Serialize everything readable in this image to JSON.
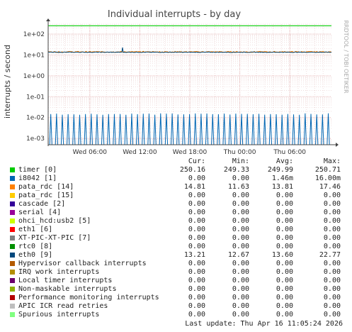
{
  "chart_data": {
    "type": "line",
    "title": "Individual interrupts - by day",
    "ylabel": "interrupts / second",
    "vertical_text": "RRDTOOL / TOBI OETIKER",
    "y_scale": "log",
    "ylim": [
      0.0005,
      300
    ],
    "y_ticks": [
      "1e+02",
      "1e+01",
      "1e+00",
      "1e-01",
      "1e-02",
      "1e-03"
    ],
    "y_tick_values": [
      100,
      10,
      1,
      0.1,
      0.01,
      0.001
    ],
    "xlim": [
      "Wed 01:00",
      "Thu 11:00"
    ],
    "x_ticks": [
      "Wed 06:00",
      "Wed 12:00",
      "Wed 18:00",
      "Thu 00:00",
      "Thu 06:00"
    ],
    "x_tick_hours": [
      5,
      11,
      17,
      23,
      29
    ],
    "x_range_hours": 34,
    "grid": true,
    "legend_placement": "bottom",
    "columns": [
      "Cur:",
      "Min:",
      "Avg:",
      "Max:"
    ],
    "series": [
      {
        "name": "timer [0]",
        "color": "#00cc00",
        "cur": "250.16",
        "min": "249.33",
        "avg": "249.99",
        "max": "250.71",
        "line": {
          "base": 250,
          "jitter": 0.3
        }
      },
      {
        "name": "i8042 [1]",
        "color": "#0066b3",
        "cur": "0.00",
        "min": "0.00",
        "avg": "1.46m",
        "max": "16.00m",
        "line": {
          "spikes": true,
          "peak": 0.016,
          "count": 49
        }
      },
      {
        "name": "pata_rdc [14]",
        "color": "#ff8000",
        "cur": "14.81",
        "min": "11.63",
        "avg": "13.81",
        "max": "17.46",
        "line": {
          "base": 14,
          "jitter": 1.5
        }
      },
      {
        "name": "pata_rdc [15]",
        "color": "#ffcc00",
        "cur": "0.00",
        "min": "0.00",
        "avg": "0.00",
        "max": "0.00"
      },
      {
        "name": "cascade [2]",
        "color": "#330099",
        "cur": "0.00",
        "min": "0.00",
        "avg": "0.00",
        "max": "0.00"
      },
      {
        "name": "serial [4]",
        "color": "#990099",
        "cur": "0.00",
        "min": "0.00",
        "avg": "0.00",
        "max": "0.00"
      },
      {
        "name": "ohci_hcd:usb2 [5]",
        "color": "#ccff00",
        "cur": "0.00",
        "min": "0.00",
        "avg": "0.00",
        "max": "0.00"
      },
      {
        "name": "eth1 [6]",
        "color": "#ff0000",
        "cur": "0.00",
        "min": "0.00",
        "avg": "0.00",
        "max": "0.00"
      },
      {
        "name": "XT-PIC-XT-PIC [7]",
        "color": "#808080",
        "cur": "0.00",
        "min": "0.00",
        "avg": "0.00",
        "max": "0.00"
      },
      {
        "name": "rtc0 [8]",
        "color": "#008f00",
        "cur": "0.00",
        "min": "0.00",
        "avg": "0.00",
        "max": "0.00"
      },
      {
        "name": "eth0 [9]",
        "color": "#00487d",
        "cur": "13.21",
        "min": "12.67",
        "avg": "13.60",
        "max": "22.77",
        "line": {
          "base": 13.5,
          "jitter": 0.8,
          "bump": 22.77
        }
      },
      {
        "name": "Hypervisor callback interrupts",
        "color": "#b35a00",
        "cur": "0.00",
        "min": "0.00",
        "avg": "0.00",
        "max": "0.00"
      },
      {
        "name": "IRQ work interrupts",
        "color": "#b38f00",
        "cur": "0.00",
        "min": "0.00",
        "avg": "0.00",
        "max": "0.00"
      },
      {
        "name": "Local timer interrupts",
        "color": "#6b006b",
        "cur": "0.00",
        "min": "0.00",
        "avg": "0.00",
        "max": "0.00"
      },
      {
        "name": "Non-maskable interrupts",
        "color": "#8fb300",
        "cur": "0.00",
        "min": "0.00",
        "avg": "0.00",
        "max": "0.00"
      },
      {
        "name": "Performance monitoring interrupts",
        "color": "#b30000",
        "cur": "0.00",
        "min": "0.00",
        "avg": "0.00",
        "max": "0.00"
      },
      {
        "name": "APIC ICR read retries",
        "color": "#bebebe",
        "cur": "0.00",
        "min": "0.00",
        "avg": "0.00",
        "max": "0.00"
      },
      {
        "name": "Spurious interrupts",
        "color": "#80ff80",
        "cur": "0.00",
        "min": "0.00",
        "avg": "0.00",
        "max": "0.00"
      }
    ],
    "last_update": "Last update: Thu Apr 16 11:05:24 2026"
  }
}
